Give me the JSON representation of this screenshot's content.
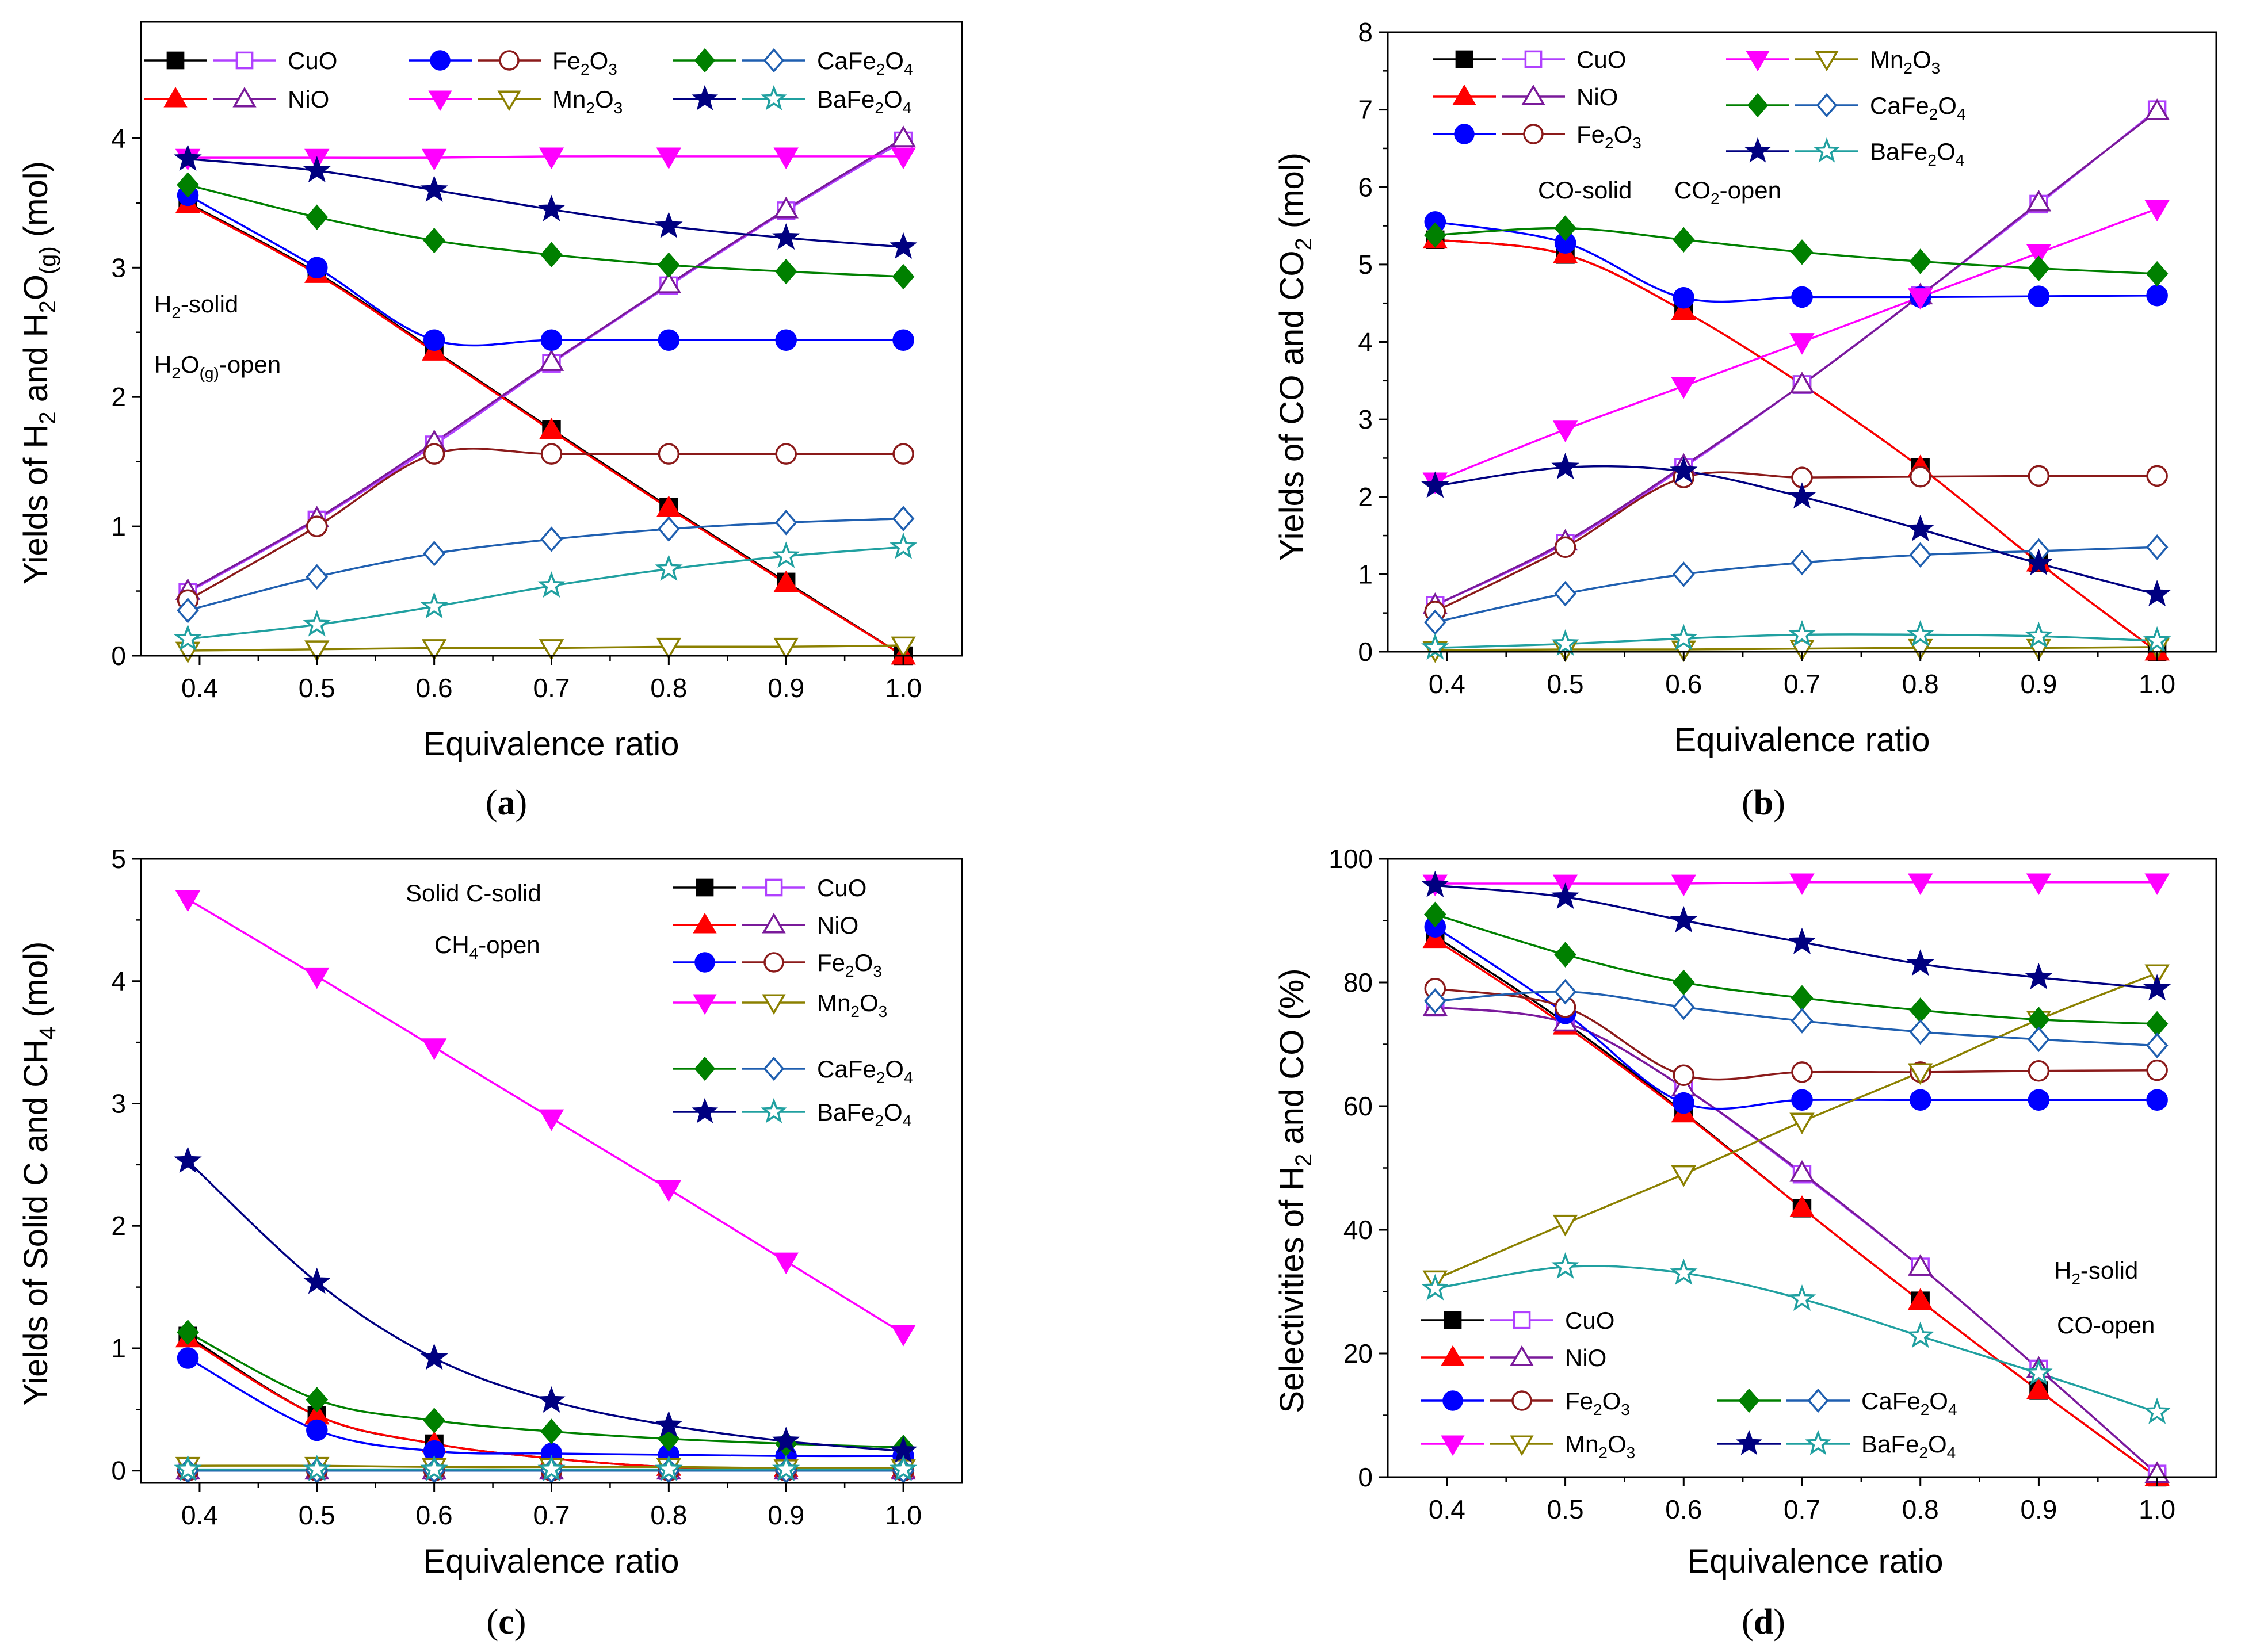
{
  "colors": {
    "CuO": "#000000",
    "CuO_open": "#b040ff",
    "NiO": "#ff0000",
    "NiO_open": "#7a1a9a",
    "Fe2O3": "#0000ff",
    "Fe2O3_open": "#8b1a1a",
    "Mn2O3": "#ff00ff",
    "Mn2O3_open": "#8b8000",
    "CaFe2O4": "#008000",
    "CaFe2O4_open": "#1f5fb0",
    "BaFe2O4": "#000080",
    "BaFe2O4_open": "#20a0a0"
  },
  "chart_data": [
    {
      "id": "a",
      "type": "line",
      "caption": "a",
      "xlabel": "Equivalence ratio",
      "ylabel": "Yields of H2 and H2O(g) (mol)",
      "xlim": [
        0.35,
        1.05
      ],
      "ylim": [
        0,
        4.9
      ],
      "xticks": [
        "0.4",
        "0.5",
        "0.6",
        "0.7",
        "0.8",
        "0.9",
        "1.0"
      ],
      "yticks": [
        "0",
        "1",
        "2",
        "3",
        "4"
      ],
      "x": [
        0.39,
        0.5,
        0.6,
        0.7,
        0.8,
        0.9,
        1.0
      ],
      "annotations": [
        "H2-solid",
        "H2O(g)-open"
      ],
      "legend_labels": [
        "CuO",
        "NiO",
        "Fe2O3",
        "Mn2O3",
        "CaFe2O4",
        "BaFe2O4"
      ],
      "series": [
        {
          "name": "CuO (solid)",
          "key": "CuO",
          "marker": "square",
          "filled": true,
          "values": [
            3.5,
            2.96,
            2.36,
            1.75,
            1.15,
            0.57,
            0.0
          ]
        },
        {
          "name": "CuO (open)",
          "key": "CuO_open",
          "marker": "square",
          "filled": false,
          "values": [
            0.49,
            1.05,
            1.63,
            2.26,
            2.86,
            3.44,
            3.98
          ]
        },
        {
          "name": "NiO (solid)",
          "key": "NiO",
          "marker": "triangle",
          "filled": true,
          "values": [
            3.49,
            2.95,
            2.35,
            1.74,
            1.14,
            0.56,
            0.0
          ]
        },
        {
          "name": "NiO (open)",
          "key": "NiO_open",
          "marker": "triangle",
          "filled": false,
          "values": [
            0.5,
            1.06,
            1.65,
            2.27,
            2.87,
            3.45,
            4.0
          ]
        },
        {
          "name": "Fe2O3 (solid)",
          "key": "Fe2O3",
          "marker": "circle",
          "filled": true,
          "values": [
            3.56,
            3.0,
            2.44,
            2.44,
            2.44,
            2.44,
            2.44
          ]
        },
        {
          "name": "Fe2O3 (open)",
          "key": "Fe2O3_open",
          "marker": "circle",
          "filled": false,
          "values": [
            0.43,
            1.0,
            1.56,
            1.56,
            1.56,
            1.56,
            1.56
          ]
        },
        {
          "name": "Mn2O3 (solid)",
          "key": "Mn2O3",
          "marker": "triangle-down",
          "filled": true,
          "values": [
            3.85,
            3.85,
            3.85,
            3.86,
            3.86,
            3.86,
            3.86
          ]
        },
        {
          "name": "Mn2O3 (open)",
          "key": "Mn2O3_open",
          "marker": "triangle-down",
          "filled": false,
          "values": [
            0.04,
            0.05,
            0.06,
            0.06,
            0.07,
            0.07,
            0.08
          ]
        },
        {
          "name": "CaFe2O4 (solid)",
          "key": "CaFe2O4",
          "marker": "diamond",
          "filled": true,
          "values": [
            3.64,
            3.39,
            3.21,
            3.1,
            3.02,
            2.97,
            2.93
          ]
        },
        {
          "name": "CaFe2O4 (open)",
          "key": "CaFe2O4_open",
          "marker": "diamond",
          "filled": false,
          "values": [
            0.35,
            0.61,
            0.79,
            0.9,
            0.98,
            1.03,
            1.06
          ]
        },
        {
          "name": "BaFe2O4 (solid)",
          "key": "BaFe2O4",
          "marker": "star",
          "filled": true,
          "values": [
            3.84,
            3.75,
            3.6,
            3.45,
            3.32,
            3.23,
            3.16
          ]
        },
        {
          "name": "BaFe2O4 (open)",
          "key": "BaFe2O4_open",
          "marker": "star",
          "filled": false,
          "values": [
            0.13,
            0.24,
            0.38,
            0.54,
            0.67,
            0.77,
            0.84
          ]
        }
      ]
    },
    {
      "id": "b",
      "type": "line",
      "caption": "b",
      "xlabel": "Equivalence ratio",
      "ylabel": "Yields of CO and CO2 (mol)",
      "xlim": [
        0.35,
        1.05
      ],
      "ylim": [
        0,
        8
      ],
      "xticks": [
        "0.4",
        "0.5",
        "0.6",
        "0.7",
        "0.8",
        "0.9",
        "1.0"
      ],
      "yticks": [
        "0",
        "1",
        "2",
        "3",
        "4",
        "5",
        "6",
        "7",
        "8"
      ],
      "x": [
        0.39,
        0.5,
        0.6,
        0.7,
        0.8,
        0.9,
        1.0
      ],
      "annotations": [
        "CO-solid",
        "CO2-open"
      ],
      "legend_labels": [
        "CuO",
        "NiO",
        "Fe2O3",
        "Mn2O3",
        "CaFe2O4",
        "BaFe2O4"
      ],
      "series": [
        {
          "name": "CuO (solid)",
          "key": "CuO",
          "marker": "square",
          "filled": true,
          "values": [
            5.32,
            5.13,
            4.4,
            3.45,
            2.38,
            1.15,
            0.0
          ]
        },
        {
          "name": "CuO (open)",
          "key": "CuO_open",
          "marker": "square",
          "filled": false,
          "values": [
            0.6,
            1.4,
            2.38,
            3.45,
            4.6,
            5.78,
            7.0
          ]
        },
        {
          "name": "NiO (solid)",
          "key": "NiO",
          "marker": "triangle",
          "filled": true,
          "values": [
            5.32,
            5.13,
            4.4,
            3.45,
            2.38,
            1.15,
            0.0
          ]
        },
        {
          "name": "NiO (open)",
          "key": "NiO_open",
          "marker": "triangle",
          "filled": false,
          "values": [
            0.6,
            1.42,
            2.4,
            3.45,
            4.6,
            5.8,
            6.98
          ]
        },
        {
          "name": "Fe2O3 (solid)",
          "key": "Fe2O3",
          "marker": "circle",
          "filled": true,
          "values": [
            5.55,
            5.28,
            4.57,
            4.58,
            4.58,
            4.59,
            4.6
          ]
        },
        {
          "name": "Fe2O3 (open)",
          "key": "Fe2O3_open",
          "marker": "circle",
          "filled": false,
          "values": [
            0.52,
            1.35,
            2.25,
            2.25,
            2.26,
            2.27,
            2.27
          ]
        },
        {
          "name": "Mn2O3 (solid)",
          "key": "Mn2O3",
          "marker": "triangle-down",
          "filled": true,
          "values": [
            2.2,
            2.87,
            3.43,
            4.0,
            4.58,
            5.15,
            5.72
          ]
        },
        {
          "name": "Mn2O3 (open)",
          "key": "Mn2O3_open",
          "marker": "triangle-down",
          "filled": false,
          "values": [
            0.02,
            0.03,
            0.03,
            0.04,
            0.05,
            0.05,
            0.06
          ]
        },
        {
          "name": "CaFe2O4 (solid)",
          "key": "CaFe2O4",
          "marker": "diamond",
          "filled": true,
          "values": [
            5.38,
            5.47,
            5.32,
            5.16,
            5.04,
            4.95,
            4.88
          ]
        },
        {
          "name": "CaFe2O4 (open)",
          "key": "CaFe2O4_open",
          "marker": "diamond",
          "filled": false,
          "values": [
            0.38,
            0.75,
            1.0,
            1.15,
            1.25,
            1.3,
            1.35
          ]
        },
        {
          "name": "BaFe2O4 (solid)",
          "key": "BaFe2O4",
          "marker": "star",
          "filled": true,
          "values": [
            2.14,
            2.38,
            2.33,
            2.0,
            1.58,
            1.14,
            0.74
          ]
        },
        {
          "name": "BaFe2O4 (open)",
          "key": "BaFe2O4_open",
          "marker": "star",
          "filled": false,
          "values": [
            0.05,
            0.1,
            0.17,
            0.22,
            0.22,
            0.2,
            0.14
          ]
        }
      ]
    },
    {
      "id": "c",
      "type": "line",
      "caption": "c",
      "xlabel": "Equivalence ratio",
      "ylabel": "Yields of Solid C and CH4 (mol)",
      "xlim": [
        0.35,
        1.05
      ],
      "ylim": [
        -0.1,
        5
      ],
      "xticks": [
        "0.4",
        "0.5",
        "0.6",
        "0.7",
        "0.8",
        "0.9",
        "1.0"
      ],
      "yticks": [
        "0",
        "1",
        "2",
        "3",
        "4",
        "5"
      ],
      "x": [
        0.39,
        0.5,
        0.6,
        0.7,
        0.8,
        0.9,
        1.0
      ],
      "annotations": [
        "Solid C-solid",
        "CH4-open"
      ],
      "legend_labels": [
        "CuO",
        "NiO",
        "Fe2O3",
        "Mn2O3",
        "CaFe2O4",
        "BaFe2O4"
      ],
      "series": [
        {
          "name": "CuO (solid)",
          "key": "CuO",
          "marker": "square",
          "filled": true,
          "values": [
            1.1,
            0.45,
            0.22,
            0.1,
            0.03,
            0.02,
            0.01
          ]
        },
        {
          "name": "CuO (open)",
          "key": "CuO_open",
          "marker": "square",
          "filled": false,
          "values": [
            0.0,
            0.0,
            0.0,
            0.0,
            0.0,
            0.0,
            0.0
          ]
        },
        {
          "name": "NiO (solid)",
          "key": "NiO",
          "marker": "triangle",
          "filled": true,
          "values": [
            1.08,
            0.45,
            0.22,
            0.1,
            0.03,
            0.02,
            0.01
          ]
        },
        {
          "name": "NiO (open)",
          "key": "NiO_open",
          "marker": "triangle",
          "filled": false,
          "values": [
            0.0,
            0.0,
            0.0,
            0.0,
            0.0,
            0.0,
            0.0
          ]
        },
        {
          "name": "Fe2O3 (solid)",
          "key": "Fe2O3",
          "marker": "circle",
          "filled": true,
          "values": [
            0.92,
            0.33,
            0.16,
            0.14,
            0.13,
            0.12,
            0.12
          ]
        },
        {
          "name": "Fe2O3 (open)",
          "key": "Fe2O3_open",
          "marker": "circle",
          "filled": false,
          "values": [
            0.0,
            0.0,
            0.0,
            0.0,
            0.0,
            0.0,
            0.0
          ]
        },
        {
          "name": "Mn2O3 (solid)",
          "key": "Mn2O3",
          "marker": "triangle-down",
          "filled": true,
          "values": [
            4.67,
            4.04,
            3.46,
            2.88,
            2.3,
            1.71,
            1.12
          ]
        },
        {
          "name": "Mn2O3 (open)",
          "key": "Mn2O3_open",
          "marker": "triangle-down",
          "filled": false,
          "values": [
            0.04,
            0.04,
            0.03,
            0.03,
            0.03,
            0.02,
            0.02
          ]
        },
        {
          "name": "CaFe2O4 (solid)",
          "key": "CaFe2O4",
          "marker": "diamond",
          "filled": true,
          "values": [
            1.13,
            0.58,
            0.41,
            0.32,
            0.26,
            0.22,
            0.19
          ]
        },
        {
          "name": "CaFe2O4 (open)",
          "key": "CaFe2O4_open",
          "marker": "diamond",
          "filled": false,
          "values": [
            0.0,
            0.0,
            0.0,
            0.0,
            0.0,
            0.0,
            0.0
          ]
        },
        {
          "name": "BaFe2O4 (solid)",
          "key": "BaFe2O4",
          "marker": "star",
          "filled": true,
          "values": [
            2.53,
            1.54,
            0.92,
            0.57,
            0.37,
            0.24,
            0.16
          ]
        },
        {
          "name": "BaFe2O4 (open)",
          "key": "BaFe2O4_open",
          "marker": "star",
          "filled": false,
          "values": [
            0.01,
            0.01,
            0.01,
            0.01,
            0.01,
            0.01,
            0.01
          ]
        }
      ]
    },
    {
      "id": "d",
      "type": "line",
      "caption": "d",
      "xlabel": "Equivalence ratio",
      "ylabel": "Selectivities of H2 and CO (%)",
      "xlim": [
        0.35,
        1.05
      ],
      "ylim": [
        0,
        100
      ],
      "xticks": [
        "0.4",
        "0.5",
        "0.6",
        "0.7",
        "0.8",
        "0.9",
        "1.0"
      ],
      "yticks": [
        "0",
        "20",
        "40",
        "60",
        "80",
        "100"
      ],
      "x": [
        0.39,
        0.5,
        0.6,
        0.7,
        0.8,
        0.9,
        1.0
      ],
      "annotations": [
        "H2-solid",
        "CO-open"
      ],
      "legend_labels": [
        "CuO",
        "NiO",
        "Fe2O3",
        "CaFe2O4",
        "Mn2O3",
        "BaFe2O4"
      ],
      "series": [
        {
          "name": "CuO (solid)",
          "key": "CuO",
          "marker": "square",
          "filled": true,
          "values": [
            87.5,
            73.5,
            59.0,
            43.5,
            28.5,
            14.0,
            0.0
          ]
        },
        {
          "name": "CuO (open)",
          "key": "CuO_open",
          "marker": "square",
          "filled": false,
          "values": [
            76.0,
            73.5,
            63.0,
            49.0,
            34.0,
            17.5,
            0.5
          ]
        },
        {
          "name": "NiO (solid)",
          "key": "NiO",
          "marker": "triangle",
          "filled": true,
          "values": [
            87.0,
            73.0,
            58.8,
            43.5,
            28.5,
            14.0,
            0.0
          ]
        },
        {
          "name": "NiO (open)",
          "key": "NiO_open",
          "marker": "triangle",
          "filled": false,
          "values": [
            76.0,
            73.5,
            63.0,
            49.2,
            34.0,
            17.5,
            0.5
          ]
        },
        {
          "name": "Fe2O3 (solid)",
          "key": "Fe2O3",
          "marker": "circle",
          "filled": true,
          "values": [
            89.0,
            75.0,
            60.5,
            61.0,
            61.0,
            61.0,
            61.0
          ]
        },
        {
          "name": "Fe2O3 (open)",
          "key": "Fe2O3_open",
          "marker": "circle",
          "filled": false,
          "values": [
            79.0,
            76.0,
            65.0,
            65.5,
            65.5,
            65.7,
            65.8
          ]
        },
        {
          "name": "Mn2O3 (solid)",
          "key": "Mn2O3",
          "marker": "triangle-down",
          "filled": true,
          "values": [
            96.0,
            96.0,
            96.0,
            96.2,
            96.2,
            96.2,
            96.2
          ]
        },
        {
          "name": "Mn2O3 (open)",
          "key": "Mn2O3_open",
          "marker": "triangle-down",
          "filled": false,
          "values": [
            32.0,
            41.0,
            49.0,
            57.5,
            65.5,
            74.0,
            81.5
          ]
        },
        {
          "name": "CaFe2O4 (solid)",
          "key": "CaFe2O4",
          "marker": "diamond",
          "filled": true,
          "values": [
            91.0,
            84.5,
            80.0,
            77.5,
            75.5,
            74.0,
            73.3
          ]
        },
        {
          "name": "CaFe2O4 (open)",
          "key": "CaFe2O4_open",
          "marker": "diamond",
          "filled": false,
          "values": [
            77.0,
            78.5,
            76.0,
            73.8,
            72.0,
            70.8,
            69.8
          ]
        },
        {
          "name": "BaFe2O4 (solid)",
          "key": "BaFe2O4",
          "marker": "star",
          "filled": true,
          "values": [
            95.7,
            93.8,
            90.0,
            86.5,
            83.0,
            80.8,
            79.0
          ]
        },
        {
          "name": "BaFe2O4 (open)",
          "key": "BaFe2O4_open",
          "marker": "star",
          "filled": false,
          "values": [
            30.5,
            34.0,
            33.0,
            28.8,
            22.8,
            16.8,
            10.5
          ]
        }
      ]
    }
  ]
}
